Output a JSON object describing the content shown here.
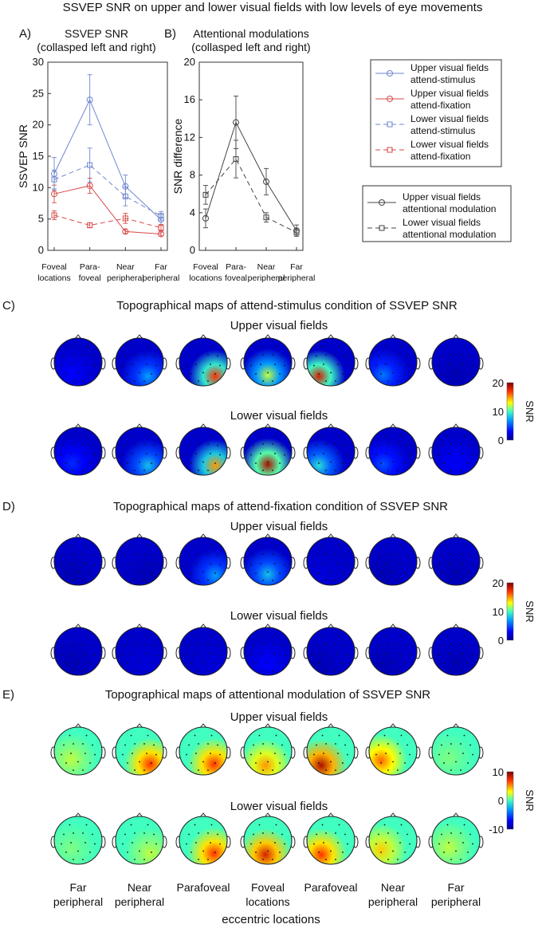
{
  "figure_title": "SSVEP SNR on upper and lower visual fields with low levels of eye movements",
  "panel_a": {
    "letter": "A)",
    "title_line1": "SSVEP SNR",
    "title_line2": "(collasped left and right)",
    "ylabel": "SSVEP SNR",
    "yticks": [
      "0",
      "5",
      "10",
      "15",
      "20",
      "25",
      "30"
    ],
    "xticks": [
      [
        "Foveal",
        "locations"
      ],
      [
        "Para-",
        "foveal"
      ],
      [
        "Near",
        "peripheral"
      ],
      [
        "Far",
        "peripheral"
      ]
    ]
  },
  "panel_b": {
    "letter": "B)",
    "title_line1": "Attentional modulations",
    "title_line2": "(collasped left and right)",
    "ylabel": "SNR difference",
    "yticks": [
      "0",
      "4",
      "8",
      "12",
      "16",
      "20"
    ],
    "xticks": [
      [
        "Foveal",
        "locations"
      ],
      [
        "Para-",
        "foveal"
      ],
      [
        "Near",
        "peripheral"
      ],
      [
        "Far",
        "peripheral"
      ]
    ]
  },
  "legend_a": [
    {
      "line1": "Upper visual fields",
      "line2": "attend-stimulus",
      "color": "#6f86cf",
      "dash": false,
      "marker": "circle"
    },
    {
      "line1": "Upper visual fields",
      "line2": "attend-fixation",
      "color": "#d94a4a",
      "dash": false,
      "marker": "circle"
    },
    {
      "line1": "Lower visual fields",
      "line2": "attend-stimulus",
      "color": "#6f86cf",
      "dash": true,
      "marker": "square"
    },
    {
      "line1": "Lower visual fields",
      "line2": "attend-fixation",
      "color": "#d94a4a",
      "dash": true,
      "marker": "square"
    }
  ],
  "legend_b": [
    {
      "line1": "Upper visual fields",
      "line2": "attentional modulation",
      "color": "#444444",
      "dash": false,
      "marker": "circle"
    },
    {
      "line1": "Lower visual fields",
      "line2": "attentional modulation",
      "color": "#444444",
      "dash": true,
      "marker": "square"
    }
  ],
  "chart_data": [
    {
      "type": "line",
      "title": "SSVEP SNR (collasped left and right)",
      "xlabel": "",
      "ylabel": "SSVEP SNR",
      "categories": [
        "Foveal locations",
        "Para-foveal",
        "Near peripheral",
        "Far peripheral"
      ],
      "ylim": [
        0,
        30
      ],
      "series": [
        {
          "name": "Upper visual fields attend-stimulus",
          "values": [
            12.2,
            24.0,
            10.2,
            4.9
          ],
          "errors": [
            2.6,
            4.0,
            1.8,
            0.8
          ],
          "color": "#6f86cf",
          "dash": false,
          "marker": "circle"
        },
        {
          "name": "Upper visual fields attend-fixation",
          "values": [
            9.0,
            10.3,
            3.0,
            2.6
          ],
          "errors": [
            1.4,
            1.2,
            0.3,
            0.3
          ],
          "color": "#d94a4a",
          "dash": false,
          "marker": "circle"
        },
        {
          "name": "Lower visual fields attend-stimulus",
          "values": [
            11.3,
            13.6,
            8.6,
            5.5
          ],
          "errors": [
            1.5,
            2.7,
            1.5,
            0.7
          ],
          "color": "#6f86cf",
          "dash": true,
          "marker": "square"
        },
        {
          "name": "Lower visual fields attend-fixation",
          "values": [
            5.6,
            4.0,
            5.1,
            3.6
          ],
          "errors": [
            0.7,
            0.4,
            0.8,
            0.5
          ],
          "color": "#d94a4a",
          "dash": true,
          "marker": "square"
        }
      ]
    },
    {
      "type": "line",
      "title": "Attentional modulations (collasped left and right)",
      "xlabel": "",
      "ylabel": "SNR difference",
      "categories": [
        "Foveal locations",
        "Para-foveal",
        "Near peripheral",
        "Far peripheral"
      ],
      "ylim": [
        0,
        20
      ],
      "series": [
        {
          "name": "Upper visual fields attentional modulation",
          "values": [
            3.4,
            13.6,
            7.3,
            2.1
          ],
          "errors": [
            1.0,
            2.8,
            1.4,
            0.6
          ],
          "color": "#444444",
          "dash": false,
          "marker": "circle"
        },
        {
          "name": "Lower visual fields attentional modulation",
          "values": [
            5.9,
            9.7,
            3.5,
            1.9
          ],
          "errors": [
            1.0,
            2.0,
            0.5,
            0.4
          ],
          "color": "#444444",
          "dash": true,
          "marker": "square"
        }
      ]
    },
    {
      "type": "heatmap",
      "title": "Topographical maps of attend-stimulus condition of SSVEP SNR",
      "colorbar": {
        "label": "SNR",
        "ticks": [
          "20",
          "10",
          "0"
        ],
        "range": [
          0,
          20
        ]
      },
      "rows": [
        {
          "label": "Upper visual fields",
          "peaks": [
            3,
            7,
            17,
            12,
            18,
            6,
            1
          ]
        },
        {
          "label": "Lower visual fields",
          "peaks": [
            4,
            8,
            15,
            19,
            9,
            5,
            3
          ]
        }
      ]
    },
    {
      "type": "heatmap",
      "title": "Topographical maps of attend-fixation condition of SSVEP SNR",
      "colorbar": {
        "label": "SNR",
        "ticks": [
          "20",
          "10",
          "0"
        ],
        "range": [
          0,
          20
        ]
      },
      "rows": [
        {
          "label": "Upper visual fields",
          "peaks": [
            1,
            1,
            7,
            8,
            2,
            1,
            1
          ]
        },
        {
          "label": "Lower visual fields",
          "peaks": [
            1,
            2,
            2,
            3,
            1,
            1,
            1
          ]
        }
      ]
    },
    {
      "type": "heatmap",
      "title": "Topographical maps of attentional modulation of SSVEP SNR",
      "colorbar": {
        "label": "SNR",
        "ticks": [
          "10",
          "0",
          "-10"
        ],
        "range": [
          -10,
          10
        ]
      },
      "rows": [
        {
          "label": "Upper visual fields",
          "peaks": [
            2,
            7,
            7,
            5,
            9,
            6,
            1
          ]
        },
        {
          "label": "Lower visual fields",
          "peaks": [
            1,
            2,
            7,
            8,
            7,
            4,
            2
          ]
        }
      ]
    }
  ],
  "panel_c": {
    "letter": "C)",
    "title": "Topographical maps of attend-stimulus condition of SSVEP SNR",
    "row1": "Upper visual fields",
    "row2": "Lower visual fields",
    "cb_label": "SNR",
    "cb_ticks": [
      "20",
      "10",
      "0"
    ]
  },
  "panel_d": {
    "letter": "D)",
    "title": "Topographical maps of attend-fixation condition of SSVEP SNR",
    "row1": "Upper visual fields",
    "row2": "Lower visual fields",
    "cb_label": "SNR",
    "cb_ticks": [
      "20",
      "10",
      "0"
    ]
  },
  "panel_e": {
    "letter": "E)",
    "title": "Topographical maps of attentional modulation of SSVEP SNR",
    "row1": "Upper visual fields",
    "row2": "Lower visual fields",
    "cb_label": "SNR",
    "cb_ticks": [
      "10",
      "0",
      "-10"
    ]
  },
  "bottom_labels": [
    [
      "Far",
      "peripheral"
    ],
    [
      "Near",
      "peripheral"
    ],
    [
      "Parafoveal"
    ],
    [
      "Foveal",
      "locations"
    ],
    [
      "Parafoveal"
    ],
    [
      "Near",
      "peripheral"
    ],
    [
      "Far",
      "peripheral"
    ]
  ],
  "bottom_axis_label": "eccentric locations"
}
